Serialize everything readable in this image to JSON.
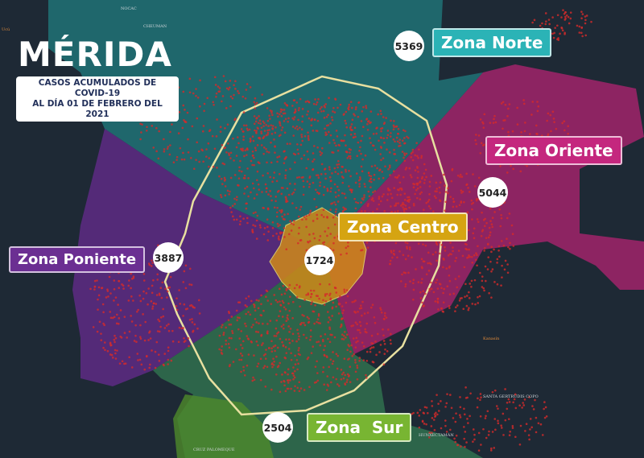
{
  "title": "MÉRIDA",
  "subtitle_line1": "CASOS ACUMULADOS DE COVID-19",
  "subtitle_line2": "AL DÍA 01 DE FEBRERO DEL 2021",
  "zones": [
    {
      "name": "Zona Norte",
      "cases": "5369",
      "color": "#2bb3b6"
    },
    {
      "name": "Zona Oriente",
      "cases": "5044",
      "color": "#c4277e"
    },
    {
      "name": "Zona Centro",
      "cases": "1724",
      "color": "#d5a412"
    },
    {
      "name": "Zona Poniente",
      "cases": "3887",
      "color": "#6b2f92"
    },
    {
      "name": "Zona  Sur",
      "cases": "2504",
      "color": "#78b532"
    }
  ],
  "places": [
    "Ucú",
    "CHEUMAN",
    "NOCAC",
    "Kanasín",
    "SANTA GERTRUDIS COPO",
    "HUNXECTAMÁN",
    "CRUZ PALOMEQUE"
  ]
}
